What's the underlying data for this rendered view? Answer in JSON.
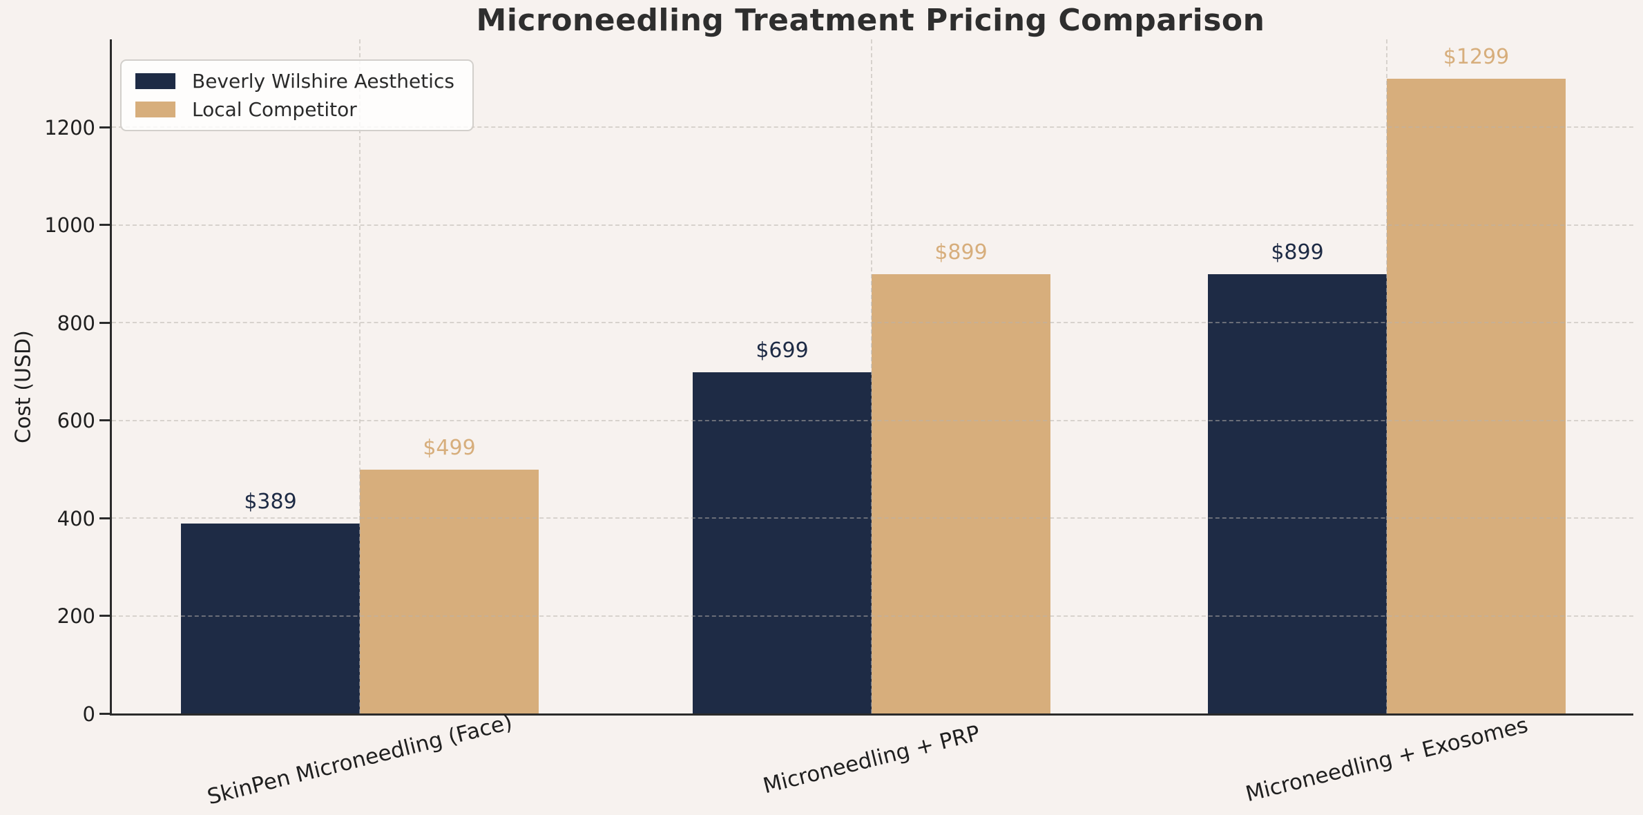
{
  "title": "Microneedling Treatment Pricing Comparison",
  "ylabel": "Cost (USD)",
  "colors": {
    "background": "#f7f2ef",
    "axis": "#2b2b2b",
    "grid": "#b7b1ab",
    "navy": "#1e2b45",
    "tan": "#d7ae7c"
  },
  "legend": {
    "items": [
      {
        "label": "Beverly Wilshire Aesthetics",
        "color": "#1e2b45"
      },
      {
        "label": "Local Competitor",
        "color": "#d7ae7c"
      }
    ]
  },
  "chart_data": {
    "type": "bar",
    "title": "Microneedling Treatment Pricing Comparison",
    "xlabel": "",
    "ylabel": "Cost (USD)",
    "categories": [
      "SkinPen Microneedling (Face)",
      "Microneedling + PRP",
      "Microneedling + Exosomes"
    ],
    "series": [
      {
        "name": "Beverly Wilshire Aesthetics",
        "color": "#1e2b45",
        "values": [
          389,
          699,
          899
        ],
        "data_labels": [
          "$389",
          "$699",
          "$899"
        ]
      },
      {
        "name": "Local Competitor",
        "color": "#d7ae7c",
        "values": [
          499,
          899,
          1299
        ],
        "data_labels": [
          "$499",
          "$899",
          "$1299"
        ]
      }
    ],
    "yticks": [
      0,
      200,
      400,
      600,
      800,
      1000,
      1200
    ],
    "ylim": [
      0,
      1380
    ],
    "grid": "dashed-both-axes",
    "legend_position": "upper left",
    "x_tick_rotation_deg": 14
  }
}
